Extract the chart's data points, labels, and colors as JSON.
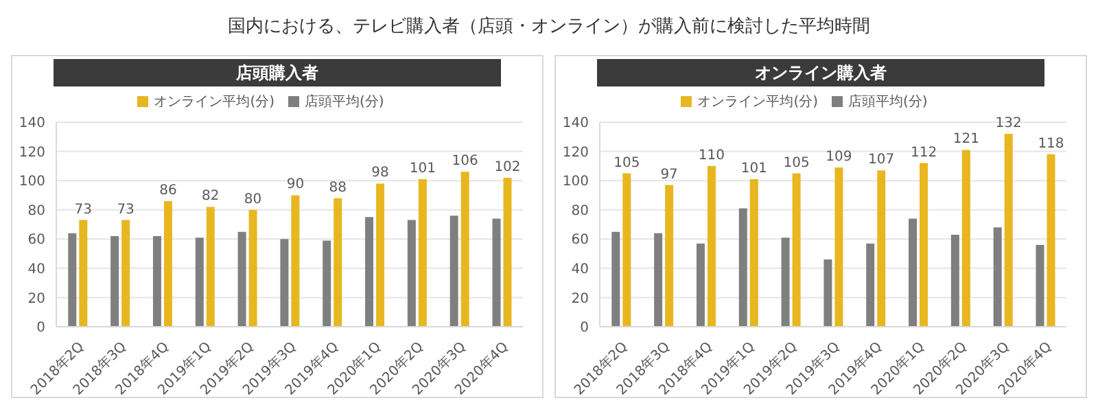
{
  "chart_data": [
    {
      "type": "bar",
      "title": "国内における、テレビ購入者（店頭・オンライン）が購入前に検討した平均時間",
      "subtitle": "店頭購入者",
      "categories": [
        "2018年2Q",
        "2018年3Q",
        "2018年4Q",
        "2019年1Q",
        "2019年2Q",
        "2019年3Q",
        "2019年4Q",
        "2020年1Q",
        "2020年2Q",
        "2020年3Q",
        "2020年4Q"
      ],
      "series": [
        {
          "name": "店頭平均(分)",
          "color": "#7f7f7f",
          "values": [
            64,
            62,
            62,
            61,
            65,
            60,
            59,
            75,
            73,
            76,
            74
          ]
        },
        {
          "name": "オンライン平均(分)",
          "color": "#e8b620",
          "values": [
            73,
            73,
            86,
            82,
            80,
            90,
            88,
            98,
            101,
            106,
            102
          ],
          "value_labels": [
            "73",
            "73",
            "86",
            "82",
            "80",
            "90",
            "88",
            "98",
            "101",
            "106",
            "102"
          ]
        }
      ],
      "ylim": [
        0,
        140
      ],
      "yticks": [
        0,
        20,
        40,
        60,
        80,
        100,
        120,
        140
      ],
      "grid": "y",
      "legend": "top"
    },
    {
      "type": "bar",
      "subtitle": "オンライン購入者",
      "categories": [
        "2018年2Q",
        "2018年3Q",
        "2018年4Q",
        "2019年1Q",
        "2019年2Q",
        "2019年3Q",
        "2019年4Q",
        "2020年1Q",
        "2020年2Q",
        "2020年3Q",
        "2020年4Q"
      ],
      "series": [
        {
          "name": "店頭平均(分)",
          "color": "#7f7f7f",
          "values": [
            65,
            64,
            57,
            81,
            61,
            46,
            57,
            74,
            63,
            68,
            56
          ]
        },
        {
          "name": "オンライン平均(分)",
          "color": "#e8b620",
          "values": [
            105,
            97,
            110,
            101,
            105,
            109,
            107,
            112,
            121,
            132,
            118
          ],
          "value_labels": [
            "105",
            "97",
            "110",
            "101",
            "105",
            "109",
            "107",
            "112",
            "121",
            "132",
            "118"
          ]
        }
      ],
      "ylim": [
        0,
        140
      ],
      "yticks": [
        0,
        20,
        40,
        60,
        80,
        100,
        120,
        140
      ],
      "grid": "y",
      "legend": "top"
    }
  ]
}
